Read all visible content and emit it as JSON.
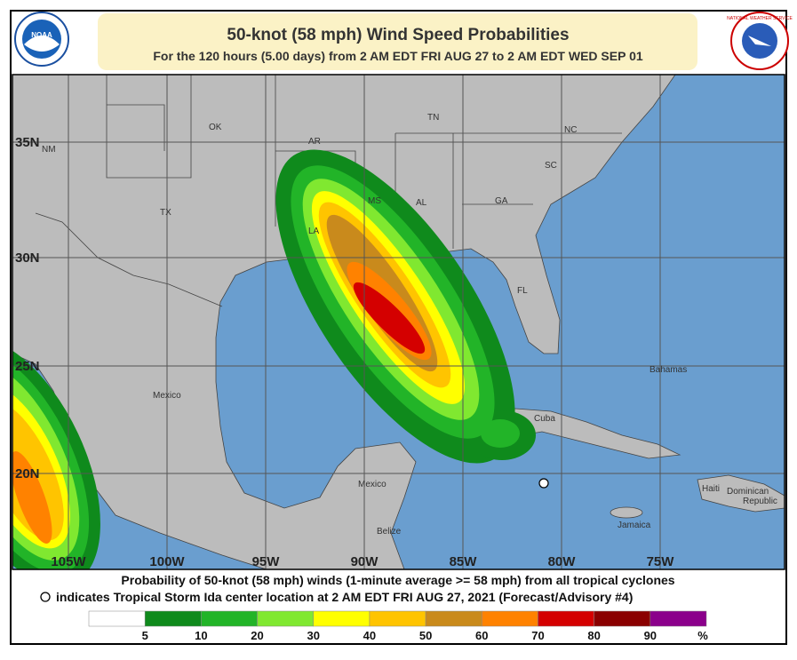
{
  "header": {
    "title": "50-knot (58 mph) Wind Speed Probabilities",
    "subtitle": "For the 120 hours (5.00 days) from 2 AM EDT FRI AUG 27 to 2 AM EDT WED SEP 01",
    "left_logo": "NOAA",
    "right_logo": "NATIONAL WEATHER SERVICE"
  },
  "map": {
    "latitude_labels": [
      "35N",
      "30N",
      "25N",
      "20N"
    ],
    "longitude_labels": [
      "105W",
      "100W",
      "95W",
      "90W",
      "85W",
      "80W",
      "75W"
    ],
    "place_labels": [
      "OK",
      "TN",
      "NC",
      "NM",
      "AR",
      "SC",
      "MS",
      "AL",
      "GA",
      "TX",
      "LA",
      "FL",
      "Bahamas",
      "Mexico",
      "Cuba",
      "Mexico",
      "Haiti",
      "Dominican",
      "Republic",
      "Jamaica",
      "Belize"
    ]
  },
  "caption": {
    "line1": "Probability of 50-knot (58 mph) winds (1-minute average >= 58 mph) from all tropical cyclones",
    "line2": "indicates Tropical Storm Ida center location at 2 AM EDT FRI AUG 27, 2021 (Forecast/Advisory #4)"
  },
  "legend": {
    "ticks": [
      5,
      10,
      20,
      30,
      40,
      50,
      60,
      70,
      80,
      90
    ],
    "unit": "%",
    "colors": [
      "#ffffff",
      "#0f8a1c",
      "#22b428",
      "#80e830",
      "#ffff00",
      "#ffc400",
      "#c98a1c",
      "#ff8200",
      "#d40000",
      "#8a0000",
      "#8b008b"
    ]
  }
}
